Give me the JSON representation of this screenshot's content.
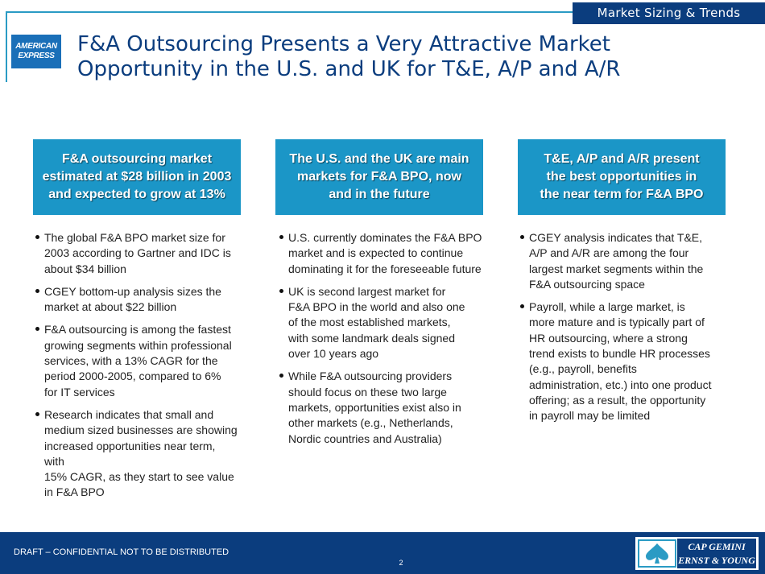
{
  "header": {
    "section_tag": "Market Sizing & Trends",
    "title": "F&A Outsourcing Presents a Very Attractive Market\nOpportunity in the U.S. and UK for T&E, A/P and A/R",
    "logo": {
      "line1": "AMERICAN",
      "line2": "EXPRESS"
    }
  },
  "columns": [
    {
      "heading": "F&A outsourcing market\nestimated at $28 billion in 2003\nand expected to grow at 13%",
      "bullets": [
        "The global F&A BPO market size for\n2003 according to Gartner and IDC is\nabout $34 billion",
        "CGEY bottom-up analysis sizes the\nmarket at about $22 billion",
        "F&A outsourcing is among the fastest\ngrowing segments within professional\nservices, with a 13% CAGR for the\nperiod 2000-2005, compared to 6%\nfor IT services",
        "Research indicates that small and\nmedium sized businesses are showing\nincreased opportunities near term, with\n15% CAGR, as they start to see value\nin F&A BPO"
      ]
    },
    {
      "heading": "The U.S. and the UK are main\nmarkets for F&A BPO, now\nand in the future",
      "bullets": [
        "U.S. currently dominates the F&A BPO\nmarket and is expected to continue\ndominating it for the foreseeable future",
        "UK is second largest market for\nF&A BPO in the world and also one\nof the most established markets,\nwith some landmark deals signed\nover 10 years ago",
        "While F&A outsourcing providers\nshould focus on these two large\nmarkets, opportunities exist also in\nother markets (e.g., Netherlands,\nNordic countries and Australia)"
      ]
    },
    {
      "heading": "T&E, A/P and A/R present\nthe best opportunities in\nthe near term for F&A BPO",
      "bullets": [
        "CGEY analysis indicates that T&E,\nA/P and A/R are among the four\nlargest market segments within the\nF&A outsourcing space",
        "Payroll, while a large market, is\nmore mature and is typically part of\nHR outsourcing, where a strong\ntrend exists to bundle HR processes\n(e.g., payroll, benefits\nadministration, etc.) into one product\noffering; as a result, the opportunity\nin payroll may be limited"
      ]
    }
  ],
  "footer": {
    "confidential": "DRAFT – CONFIDENTIAL NOT TO BE DISTRIBUTED",
    "page_number": "2",
    "partner_logo": {
      "line1": "CAP GEMINI",
      "line2": "ERNST & YOUNG"
    }
  },
  "colors": {
    "navy": "#0b3d7e",
    "accent_blue": "#1b96c7",
    "line_blue": "#2a9bc4"
  }
}
